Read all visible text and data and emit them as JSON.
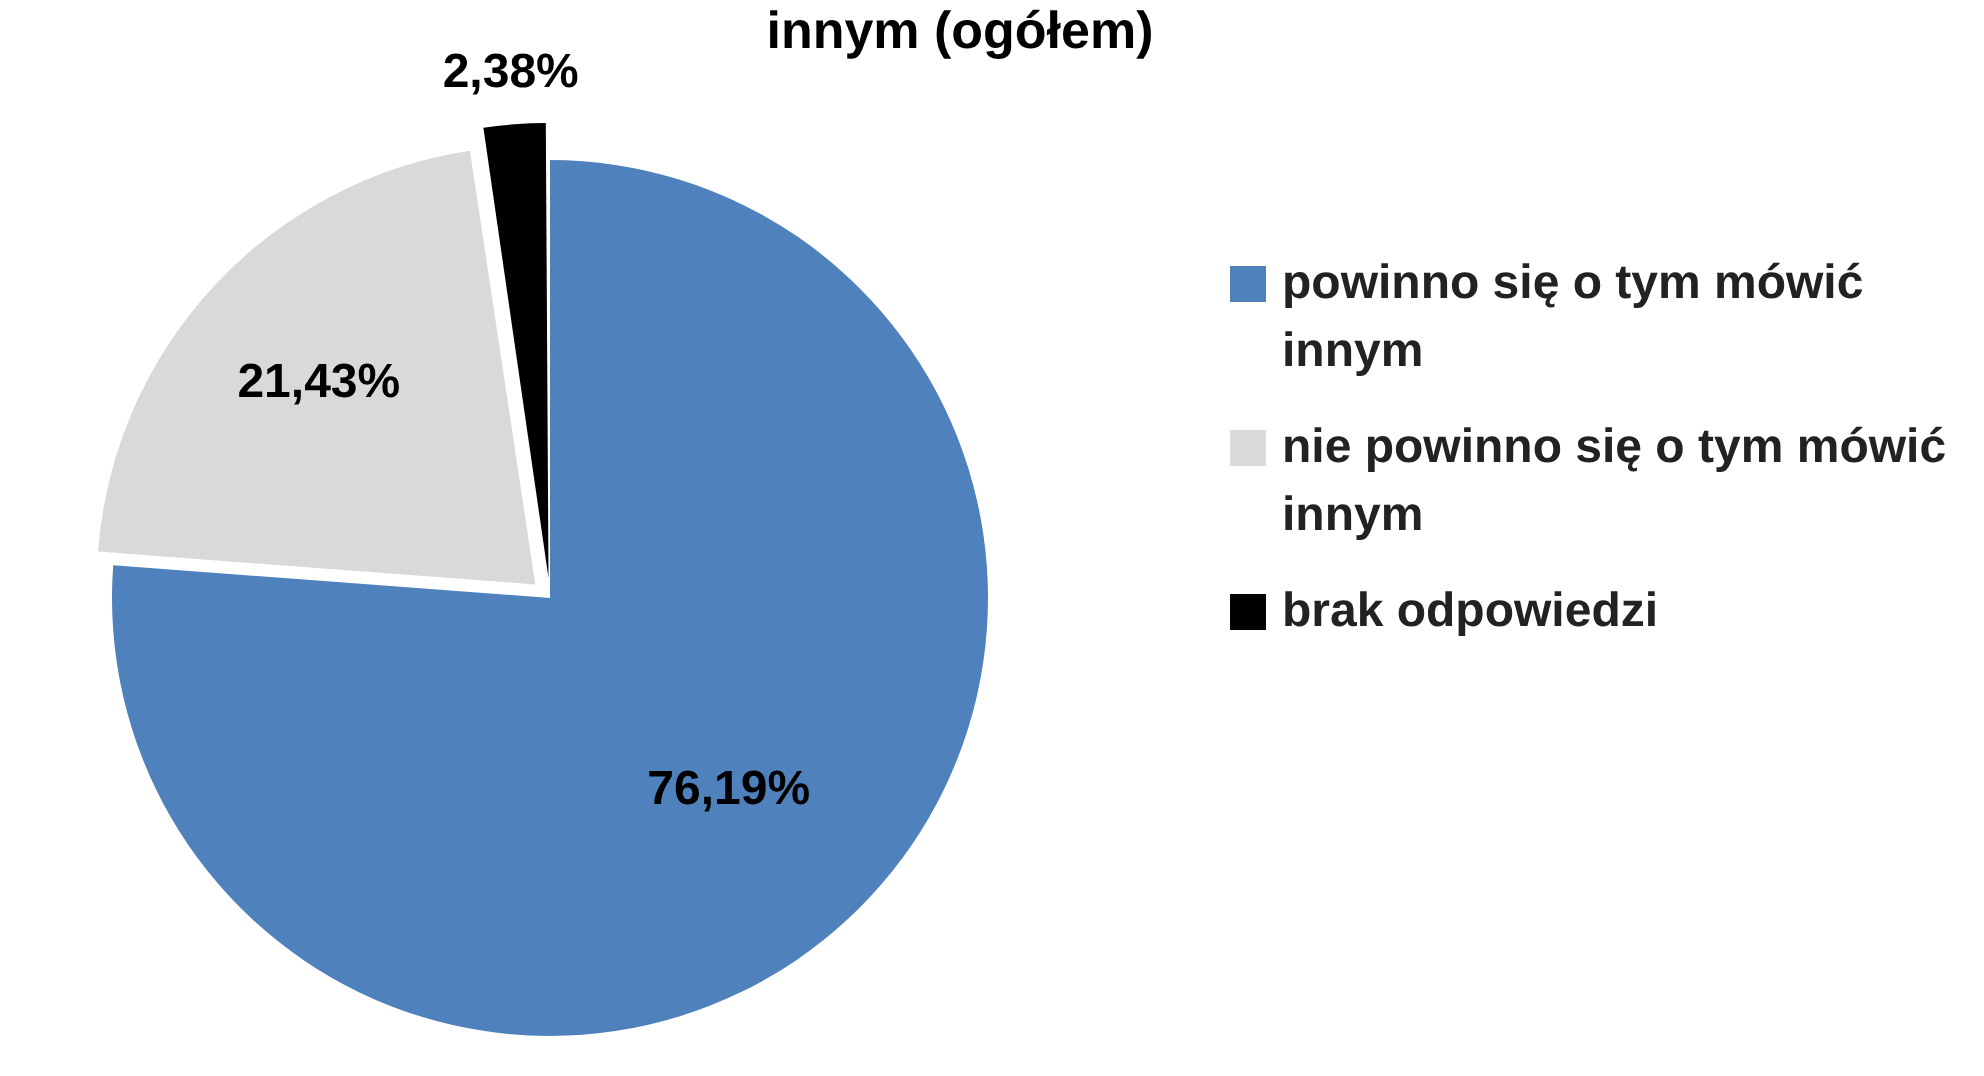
{
  "chart_data": {
    "type": "pie",
    "title": "innym (ogółem)",
    "categories": [
      "powinno się o tym mówić innym",
      "nie powinno się o tym mówić innym",
      "brak odpowiedzi"
    ],
    "values": [
      76.19,
      21.43,
      2.38
    ],
    "colors": [
      "#4f81bd",
      "#d9d9d9",
      "#000000"
    ],
    "value_labels": [
      "76,19%",
      "21,43%",
      "2,38%"
    ],
    "legend": "right"
  }
}
